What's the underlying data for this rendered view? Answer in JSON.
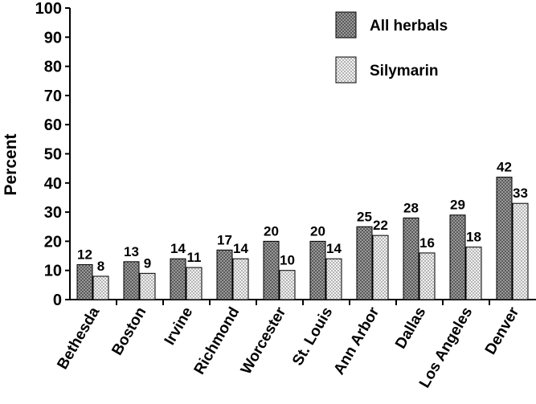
{
  "chart_data": {
    "type": "bar",
    "ylabel": "Percent",
    "ylim": [
      0,
      100
    ],
    "yticks": [
      "0",
      "10",
      "20",
      "30",
      "40",
      "50",
      "60",
      "70",
      "80",
      "90",
      "100"
    ],
    "categories": [
      "Bethesda",
      "Boston",
      "Irvine",
      "Richmond",
      "Worcester",
      "St. Louis",
      "Ann Arbor",
      "Dallas",
      "Los Angeles",
      "Denver"
    ],
    "series": [
      {
        "name": "All herbals",
        "values": [
          12,
          13,
          14,
          17,
          20,
          20,
          25,
          28,
          29,
          42
        ],
        "labels": [
          "12",
          "13",
          "14",
          "17",
          "20",
          "20",
          "25",
          "28",
          "29",
          "42"
        ],
        "value_precision_note": "",
        "color": "#8c8c8c"
      },
      {
        "name": "Silymarin",
        "values": [
          8,
          9,
          11,
          14,
          10,
          14,
          22,
          16,
          18,
          33
        ],
        "labels": [
          "8",
          "9",
          "11",
          "14",
          "10",
          "14",
          "22",
          "16",
          "18",
          "33"
        ],
        "color": "#e6e6e6"
      }
    ],
    "legend_position": "top-right",
    "grid": false
  }
}
